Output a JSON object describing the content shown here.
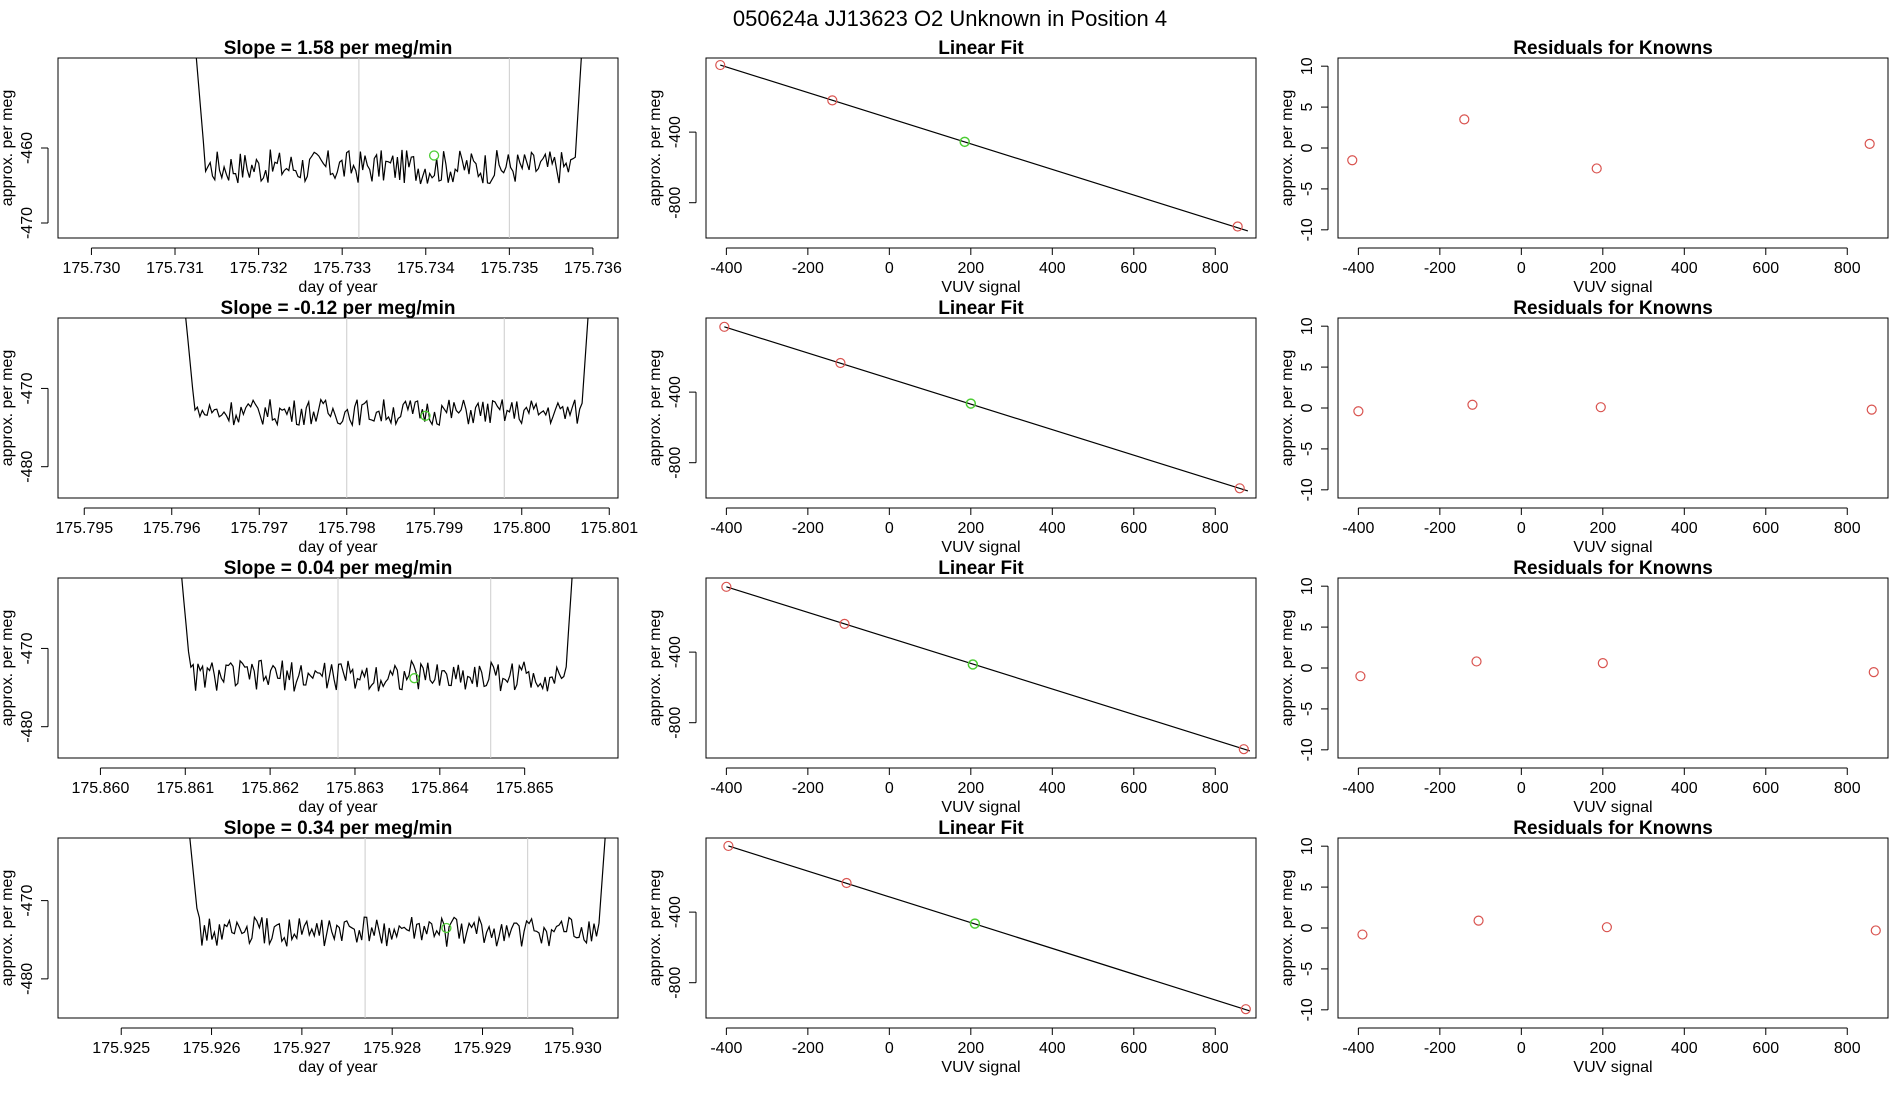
{
  "page": {
    "title": "050624a      JJ13623    O2 Unknown in Position  4"
  },
  "colors": {
    "line": "#000000",
    "known_point": "#d9534f",
    "unknown_point": "#4ccc33",
    "reference_line": "#cccccc"
  },
  "chart_data": [
    {
      "type": "line",
      "title": "Slope =  1.58  per meg/min",
      "xlabel": "day of year",
      "ylabel": "approx. per meg",
      "xlim": [
        175.7296,
        175.7363
      ],
      "ylim": [
        -472,
        -448
      ],
      "xticks": [
        "175.730",
        "175.731",
        "175.732",
        "175.733",
        "175.734",
        "175.735",
        "175.736"
      ],
      "yticks": [
        "-470",
        "-460"
      ],
      "trace_x_range": [
        175.7312,
        175.7359
      ],
      "trace_level": -462.5,
      "trace_noise": 2.3,
      "vlines": [
        175.7332,
        175.735
      ],
      "unknown_point": {
        "x": 175.7341,
        "y": -461
      }
    },
    {
      "type": "scatter",
      "title": "Linear Fit",
      "xlabel": "VUV signal",
      "ylabel": "approx. per meg",
      "xlim": [
        -450,
        900
      ],
      "ylim": [
        -1000,
        20
      ],
      "xticks": [
        "-400",
        "-200",
        "0",
        "200",
        "400",
        "600",
        "800"
      ],
      "yticks": [
        "-400",
        "-800"
      ],
      "fit_line": {
        "x": [
          -415,
          880
        ],
        "y": [
          -20,
          -960
        ]
      },
      "knowns": {
        "x": [
          -415,
          -140,
          855
        ],
        "y": [
          -20,
          -220,
          -935
        ]
      },
      "unknown": {
        "x": 185,
        "y": -455
      }
    },
    {
      "type": "scatter",
      "title": "Residuals for Knowns",
      "xlabel": "VUV signal",
      "ylabel": "approx. per meg",
      "xlim": [
        -450,
        900
      ],
      "ylim": [
        -11,
        11
      ],
      "xticks": [
        "-400",
        "-200",
        "0",
        "200",
        "400",
        "600",
        "800"
      ],
      "yticks": [
        "10",
        "5",
        "0",
        "-5",
        "-10"
      ],
      "residuals": {
        "x": [
          -415,
          -140,
          185,
          855
        ],
        "y": [
          -1.5,
          3.5,
          -2.5,
          0.5
        ]
      }
    },
    {
      "type": "line",
      "title": "Slope =  -0.12  per meg/min",
      "xlabel": "day of year",
      "ylabel": "approx. per meg",
      "xlim": [
        175.7947,
        175.8011
      ],
      "ylim": [
        -484,
        -461
      ],
      "xticks": [
        "175.795",
        "175.796",
        "175.797",
        "175.798",
        "175.799",
        "175.800",
        "175.801"
      ],
      "yticks": [
        "-470",
        "-480"
      ],
      "trace_x_range": [
        175.7961,
        175.8008
      ],
      "trace_level": -473,
      "trace_noise": 1.7,
      "vlines": [
        175.798,
        175.7998
      ],
      "unknown_point": {
        "x": 175.7989,
        "y": -473.5
      }
    },
    {
      "type": "scatter",
      "title": "Linear Fit",
      "xlabel": "VUV signal",
      "ylabel": "approx. per meg",
      "xlim": [
        -450,
        900
      ],
      "ylim": [
        -1000,
        20
      ],
      "xticks": [
        "-400",
        "-200",
        "0",
        "200",
        "400",
        "600",
        "800"
      ],
      "yticks": [
        "-400",
        "-800"
      ],
      "fit_line": {
        "x": [
          -405,
          880
        ],
        "y": [
          -30,
          -960
        ]
      },
      "knowns": {
        "x": [
          -405,
          -120,
          860
        ],
        "y": [
          -30,
          -235,
          -945
        ]
      },
      "unknown": {
        "x": 200,
        "y": -465
      }
    },
    {
      "type": "scatter",
      "title": "Residuals for Knowns",
      "xlabel": "VUV signal",
      "ylabel": "approx. per meg",
      "xlim": [
        -450,
        900
      ],
      "ylim": [
        -11,
        11
      ],
      "xticks": [
        "-400",
        "-200",
        "0",
        "200",
        "400",
        "600",
        "800"
      ],
      "yticks": [
        "10",
        "5",
        "0",
        "-5",
        "-10"
      ],
      "residuals": {
        "x": [
          -400,
          -120,
          195,
          860
        ],
        "y": [
          -0.4,
          0.4,
          0.1,
          -0.2
        ]
      }
    },
    {
      "type": "line",
      "title": "Slope =  0.04  per meg/min",
      "xlabel": "day of year",
      "ylabel": "approx. per meg",
      "xlim": [
        175.8595,
        175.8661
      ],
      "ylim": [
        -484,
        -461
      ],
      "xticks": [
        "175.860",
        "175.861",
        "175.862",
        "175.863",
        "175.864",
        "175.865"
      ],
      "yticks": [
        "-470",
        "-480"
      ],
      "trace_x_range": [
        175.8609,
        175.8656
      ],
      "trace_level": -473.5,
      "trace_noise": 2.0,
      "vlines": [
        175.8628,
        175.8646
      ],
      "unknown_point": {
        "x": 175.8637,
        "y": -473.8
      }
    },
    {
      "type": "scatter",
      "title": "Linear Fit",
      "xlabel": "VUV signal",
      "ylabel": "approx. per meg",
      "xlim": [
        -450,
        900
      ],
      "ylim": [
        -1000,
        20
      ],
      "xticks": [
        "-400",
        "-200",
        "0",
        "200",
        "400",
        "600",
        "800"
      ],
      "yticks": [
        "-400",
        "-800"
      ],
      "fit_line": {
        "x": [
          -400,
          885
        ],
        "y": [
          -30,
          -960
        ]
      },
      "knowns": {
        "x": [
          -400,
          -110,
          870
        ],
        "y": [
          -30,
          -240,
          -950
        ]
      },
      "unknown": {
        "x": 205,
        "y": -470
      }
    },
    {
      "type": "scatter",
      "title": "Residuals for Knowns",
      "xlabel": "VUV signal",
      "ylabel": "approx. per meg",
      "xlim": [
        -450,
        900
      ],
      "ylim": [
        -11,
        11
      ],
      "xticks": [
        "-400",
        "-200",
        "0",
        "200",
        "400",
        "600",
        "800"
      ],
      "yticks": [
        "10",
        "5",
        "0",
        "-5",
        "-10"
      ],
      "residuals": {
        "x": [
          -395,
          -110,
          200,
          865
        ],
        "y": [
          -1.0,
          0.8,
          0.6,
          -0.5
        ]
      }
    },
    {
      "type": "line",
      "title": "Slope =  0.34  per meg/min",
      "xlabel": "day of year",
      "ylabel": "approx. per meg",
      "xlim": [
        175.9243,
        175.9305
      ],
      "ylim": [
        -485,
        -462
      ],
      "xticks": [
        "175.925",
        "175.926",
        "175.927",
        "175.928",
        "175.929",
        "175.930"
      ],
      "yticks": [
        "-470",
        "-480"
      ],
      "trace_x_range": [
        175.9257,
        175.9304
      ],
      "trace_level": -474,
      "trace_noise": 1.9,
      "vlines": [
        175.9277,
        175.9295
      ],
      "unknown_point": {
        "x": 175.9286,
        "y": -473.5
      }
    },
    {
      "type": "scatter",
      "title": "Linear Fit",
      "xlabel": "VUV signal",
      "ylabel": "approx. per meg",
      "xlim": [
        -450,
        900
      ],
      "ylim": [
        -1000,
        20
      ],
      "xticks": [
        "-400",
        "-200",
        "0",
        "200",
        "400",
        "600",
        "800"
      ],
      "yticks": [
        "-400",
        "-800"
      ],
      "fit_line": {
        "x": [
          -395,
          885
        ],
        "y": [
          -25,
          -960
        ]
      },
      "knowns": {
        "x": [
          -395,
          -105,
          875
        ],
        "y": [
          -25,
          -235,
          -950
        ]
      },
      "unknown": {
        "x": 210,
        "y": -465
      }
    },
    {
      "type": "scatter",
      "title": "Residuals for Knowns",
      "xlabel": "VUV signal",
      "ylabel": "approx. per meg",
      "xlim": [
        -450,
        900
      ],
      "ylim": [
        -11,
        11
      ],
      "xticks": [
        "-400",
        "-200",
        "0",
        "200",
        "400",
        "600",
        "800"
      ],
      "yticks": [
        "10",
        "5",
        "0",
        "-5",
        "-10"
      ],
      "residuals": {
        "x": [
          -390,
          -105,
          210,
          870
        ],
        "y": [
          -0.8,
          0.9,
          0.1,
          -0.3
        ]
      }
    }
  ]
}
